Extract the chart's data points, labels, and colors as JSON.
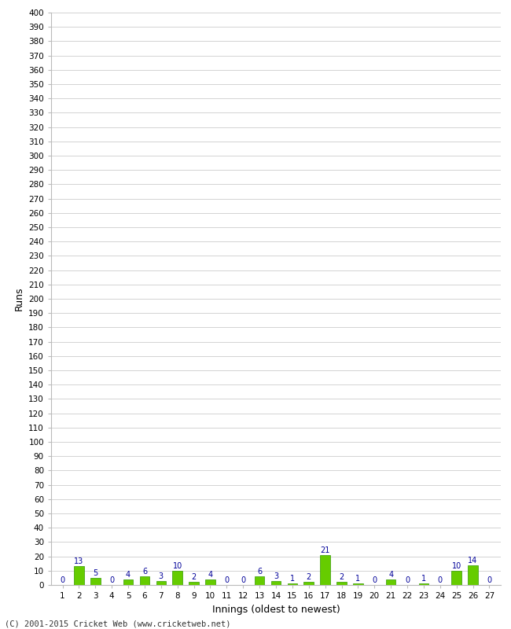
{
  "title": "",
  "xlabel": "Innings (oldest to newest)",
  "ylabel": "Runs",
  "categories": [
    1,
    2,
    3,
    4,
    5,
    6,
    7,
    8,
    9,
    10,
    11,
    12,
    13,
    14,
    15,
    16,
    17,
    18,
    19,
    20,
    21,
    22,
    23,
    24,
    25,
    26,
    27
  ],
  "values": [
    0,
    13,
    5,
    0,
    4,
    6,
    3,
    10,
    2,
    4,
    0,
    0,
    6,
    3,
    1,
    2,
    21,
    2,
    1,
    0,
    4,
    0,
    1,
    0,
    10,
    14,
    0
  ],
  "bar_color": "#66cc00",
  "bar_edge_color": "#339900",
  "label_color": "#000099",
  "ylim": [
    0,
    400
  ],
  "background_color": "#ffffff",
  "grid_color": "#cccccc",
  "footer": "(C) 2001-2015 Cricket Web (www.cricketweb.net)"
}
